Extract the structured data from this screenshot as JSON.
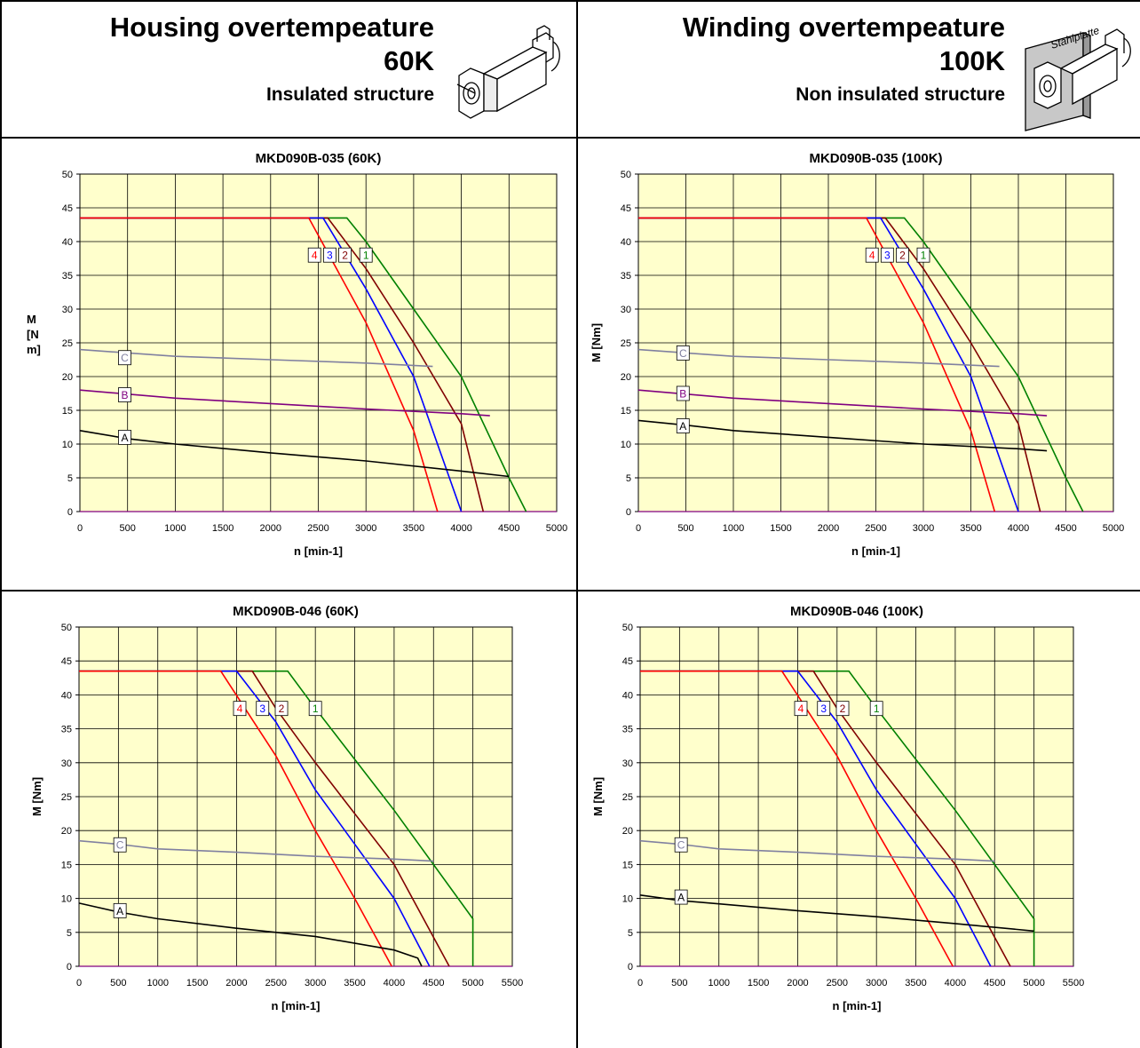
{
  "header": {
    "left": {
      "title": "Housing overtempeature",
      "value": "60K",
      "structure": "Insulated structure"
    },
    "right": {
      "title": "Winding overtempeature",
      "value": "100K",
      "structure": "Non insulated structure",
      "plate_label": "Stahlplatte"
    }
  },
  "colors": {
    "plot_bg": "#ffffcc",
    "c1": "#008000",
    "c2": "#800000",
    "c3": "#0000ff",
    "c4": "#ff0000",
    "A": "#000000",
    "B": "#800080",
    "C": "#8080a0"
  },
  "chart_data": [
    {
      "type": "line",
      "title": "MKD090B-035 (60K)",
      "xlabel": "n [min-1]",
      "ylabel": "M\n[N\nm]",
      "xlim": [
        0,
        5000
      ],
      "ylim": [
        0,
        50
      ],
      "xticks": [
        0,
        500,
        1000,
        1500,
        2000,
        2500,
        3000,
        3500,
        4000,
        4500,
        5000
      ],
      "yticks": [
        0,
        5,
        10,
        15,
        20,
        25,
        30,
        35,
        40,
        45,
        50
      ],
      "series": [
        {
          "name": "1",
          "points": [
            [
              0,
              43.5
            ],
            [
              2800,
              43.5
            ],
            [
              3000,
              40
            ],
            [
              3500,
              30
            ],
            [
              4000,
              20
            ],
            [
              4500,
              5
            ],
            [
              4680,
              0
            ]
          ]
        },
        {
          "name": "2",
          "points": [
            [
              0,
              43.5
            ],
            [
              2600,
              43.5
            ],
            [
              3000,
              36
            ],
            [
              3500,
              25
            ],
            [
              4000,
              13
            ],
            [
              4230,
              0
            ]
          ]
        },
        {
          "name": "3",
          "points": [
            [
              0,
              43.5
            ],
            [
              2550,
              43.5
            ],
            [
              3000,
              33
            ],
            [
              3500,
              20
            ],
            [
              4000,
              0
            ]
          ]
        },
        {
          "name": "4",
          "points": [
            [
              0,
              43.5
            ],
            [
              2400,
              43.5
            ],
            [
              3000,
              28
            ],
            [
              3500,
              12
            ],
            [
              3750,
              0
            ]
          ]
        },
        {
          "name": "A",
          "points": [
            [
              0,
              12
            ],
            [
              500,
              10.8
            ],
            [
              1000,
              10
            ],
            [
              2000,
              8.7
            ],
            [
              3000,
              7.5
            ],
            [
              4000,
              6
            ],
            [
              4500,
              5.2
            ]
          ]
        },
        {
          "name": "B",
          "points": [
            [
              0,
              18
            ],
            [
              1000,
              16.8
            ],
            [
              2000,
              16
            ],
            [
              3000,
              15.2
            ],
            [
              4000,
              14.5
            ],
            [
              4300,
              14.2
            ]
          ]
        },
        {
          "name": "C",
          "points": [
            [
              0,
              24
            ],
            [
              1000,
              23
            ],
            [
              2000,
              22.5
            ],
            [
              3000,
              22
            ],
            [
              3700,
              21.5
            ]
          ]
        }
      ],
      "labels": [
        {
          "text": "1",
          "x": 3000,
          "y": 38,
          "color": "#008000"
        },
        {
          "text": "2",
          "x": 2780,
          "y": 38,
          "color": "#800000"
        },
        {
          "text": "3",
          "x": 2620,
          "y": 38,
          "color": "#0000ff"
        },
        {
          "text": "4",
          "x": 2460,
          "y": 38,
          "color": "#ff0000"
        },
        {
          "text": "A",
          "x": 470,
          "y": 11,
          "color": "#000000"
        },
        {
          "text": "B",
          "x": 470,
          "y": 17.3,
          "color": "#800080"
        },
        {
          "text": "C",
          "x": 470,
          "y": 22.8,
          "color": "#8080a0"
        }
      ]
    },
    {
      "type": "line",
      "title": "MKD090B-035 (100K)",
      "xlabel": "n [min-1]",
      "ylabel": "M [Nm]",
      "xlim": [
        0,
        5000
      ],
      "ylim": [
        0,
        50
      ],
      "xticks": [
        0,
        500,
        1000,
        1500,
        2000,
        2500,
        3000,
        3500,
        4000,
        4500,
        5000
      ],
      "yticks": [
        0,
        5,
        10,
        15,
        20,
        25,
        30,
        35,
        40,
        45,
        50
      ],
      "series": [
        {
          "name": "1",
          "points": [
            [
              0,
              43.5
            ],
            [
              2800,
              43.5
            ],
            [
              3000,
              40
            ],
            [
              3500,
              30
            ],
            [
              4000,
              20
            ],
            [
              4500,
              5
            ],
            [
              4680,
              0
            ]
          ]
        },
        {
          "name": "2",
          "points": [
            [
              0,
              43.5
            ],
            [
              2600,
              43.5
            ],
            [
              3000,
              36
            ],
            [
              3500,
              25
            ],
            [
              4000,
              13
            ],
            [
              4230,
              0
            ]
          ]
        },
        {
          "name": "3",
          "points": [
            [
              0,
              43.5
            ],
            [
              2550,
              43.5
            ],
            [
              3000,
              33
            ],
            [
              3500,
              20
            ],
            [
              4000,
              0
            ]
          ]
        },
        {
          "name": "4",
          "points": [
            [
              0,
              43.5
            ],
            [
              2400,
              43.5
            ],
            [
              3000,
              28
            ],
            [
              3500,
              12
            ],
            [
              3750,
              0
            ]
          ]
        },
        {
          "name": "A",
          "points": [
            [
              0,
              13.5
            ],
            [
              500,
              12.8
            ],
            [
              1000,
              12
            ],
            [
              2000,
              11
            ],
            [
              3000,
              10
            ],
            [
              4000,
              9.3
            ],
            [
              4300,
              9
            ]
          ]
        },
        {
          "name": "B",
          "points": [
            [
              0,
              18
            ],
            [
              1000,
              16.8
            ],
            [
              2000,
              16
            ],
            [
              3000,
              15.2
            ],
            [
              4000,
              14.5
            ],
            [
              4300,
              14.2
            ]
          ]
        },
        {
          "name": "C",
          "points": [
            [
              0,
              24
            ],
            [
              1000,
              23
            ],
            [
              2000,
              22.5
            ],
            [
              3000,
              22
            ],
            [
              3800,
              21.5
            ]
          ]
        }
      ],
      "labels": [
        {
          "text": "1",
          "x": 3000,
          "y": 38,
          "color": "#008000"
        },
        {
          "text": "2",
          "x": 2780,
          "y": 38,
          "color": "#800000"
        },
        {
          "text": "3",
          "x": 2620,
          "y": 38,
          "color": "#0000ff"
        },
        {
          "text": "4",
          "x": 2460,
          "y": 38,
          "color": "#ff0000"
        },
        {
          "text": "A",
          "x": 470,
          "y": 12.7,
          "color": "#000000"
        },
        {
          "text": "B",
          "x": 470,
          "y": 17.5,
          "color": "#800080"
        },
        {
          "text": "C",
          "x": 470,
          "y": 23.5,
          "color": "#8080a0"
        }
      ]
    },
    {
      "type": "line",
      "title": "MKD090B-046 (60K)",
      "xlabel": "n [min-1]",
      "ylabel": "M [Nm]",
      "xlim": [
        0,
        5500
      ],
      "ylim": [
        0,
        50
      ],
      "xticks": [
        0,
        500,
        1000,
        1500,
        2000,
        2500,
        3000,
        3500,
        4000,
        4500,
        5000,
        5500
      ],
      "yticks": [
        0,
        5,
        10,
        15,
        20,
        25,
        30,
        35,
        40,
        45,
        50
      ],
      "series": [
        {
          "name": "1",
          "points": [
            [
              0,
              43.5
            ],
            [
              2650,
              43.5
            ],
            [
              3000,
              38
            ],
            [
              4000,
              23
            ],
            [
              5000,
              7
            ],
            [
              5000,
              0
            ]
          ]
        },
        {
          "name": "2",
          "points": [
            [
              0,
              43.5
            ],
            [
              2200,
              43.5
            ],
            [
              2500,
              38
            ],
            [
              3000,
              30
            ],
            [
              4000,
              15
            ],
            [
              4700,
              0
            ]
          ]
        },
        {
          "name": "3",
          "points": [
            [
              0,
              43.5
            ],
            [
              2000,
              43.5
            ],
            [
              2500,
              36
            ],
            [
              3000,
              26
            ],
            [
              4000,
              10
            ],
            [
              4450,
              0
            ]
          ]
        },
        {
          "name": "4",
          "points": [
            [
              0,
              43.5
            ],
            [
              1800,
              43.5
            ],
            [
              2500,
              31
            ],
            [
              3000,
              20
            ],
            [
              3500,
              10
            ],
            [
              3970,
              0
            ]
          ]
        },
        {
          "name": "A",
          "points": [
            [
              0,
              9.3
            ],
            [
              500,
              8
            ],
            [
              1000,
              7
            ],
            [
              2000,
              5.6
            ],
            [
              3000,
              4.4
            ],
            [
              4000,
              2.4
            ],
            [
              4300,
              1.2
            ],
            [
              4350,
              0
            ]
          ]
        },
        {
          "name": "C",
          "points": [
            [
              0,
              18.5
            ],
            [
              500,
              18
            ],
            [
              1000,
              17.3
            ],
            [
              2000,
              16.8
            ],
            [
              3000,
              16.2
            ],
            [
              4000,
              15.8
            ],
            [
              4500,
              15.5
            ]
          ]
        }
      ],
      "labels": [
        {
          "text": "1",
          "x": 3000,
          "y": 38,
          "color": "#008000"
        },
        {
          "text": "2",
          "x": 2570,
          "y": 38,
          "color": "#800000"
        },
        {
          "text": "3",
          "x": 2330,
          "y": 38,
          "color": "#0000ff"
        },
        {
          "text": "4",
          "x": 2040,
          "y": 38,
          "color": "#ff0000"
        },
        {
          "text": "A",
          "x": 520,
          "y": 8.2,
          "color": "#000000"
        },
        {
          "text": "C",
          "x": 520,
          "y": 17.9,
          "color": "#8080a0"
        }
      ]
    },
    {
      "type": "line",
      "title": "MKD090B-046 (100K)",
      "xlabel": "n [min-1]",
      "ylabel": "M [Nm]",
      "xlim": [
        0,
        5500
      ],
      "ylim": [
        0,
        50
      ],
      "xticks": [
        0,
        500,
        1000,
        1500,
        2000,
        2500,
        3000,
        3500,
        4000,
        4500,
        5000,
        5500
      ],
      "yticks": [
        0,
        5,
        10,
        15,
        20,
        25,
        30,
        35,
        40,
        45,
        50
      ],
      "series": [
        {
          "name": "1",
          "points": [
            [
              0,
              43.5
            ],
            [
              2650,
              43.5
            ],
            [
              3000,
              38
            ],
            [
              4000,
              23
            ],
            [
              5000,
              7
            ],
            [
              5000,
              0
            ]
          ]
        },
        {
          "name": "2",
          "points": [
            [
              0,
              43.5
            ],
            [
              2200,
              43.5
            ],
            [
              2500,
              38
            ],
            [
              3000,
              30
            ],
            [
              4000,
              15
            ],
            [
              4700,
              0
            ]
          ]
        },
        {
          "name": "3",
          "points": [
            [
              0,
              43.5
            ],
            [
              2000,
              43.5
            ],
            [
              2500,
              36
            ],
            [
              3000,
              26
            ],
            [
              4000,
              10
            ],
            [
              4450,
              0
            ]
          ]
        },
        {
          "name": "4",
          "points": [
            [
              0,
              43.5
            ],
            [
              1800,
              43.5
            ],
            [
              2500,
              31
            ],
            [
              3000,
              20
            ],
            [
              3500,
              10
            ],
            [
              3970,
              0
            ]
          ]
        },
        {
          "name": "A",
          "points": [
            [
              0,
              10.5
            ],
            [
              500,
              9.7
            ],
            [
              1000,
              9.2
            ],
            [
              2000,
              8.2
            ],
            [
              3000,
              7.3
            ],
            [
              4000,
              6.3
            ],
            [
              5000,
              5.2
            ]
          ]
        },
        {
          "name": "C",
          "points": [
            [
              0,
              18.5
            ],
            [
              500,
              18
            ],
            [
              1000,
              17.3
            ],
            [
              2000,
              16.8
            ],
            [
              3000,
              16.2
            ],
            [
              4000,
              15.8
            ],
            [
              4500,
              15.5
            ]
          ]
        }
      ],
      "labels": [
        {
          "text": "1",
          "x": 3000,
          "y": 38,
          "color": "#008000"
        },
        {
          "text": "2",
          "x": 2570,
          "y": 38,
          "color": "#800000"
        },
        {
          "text": "3",
          "x": 2330,
          "y": 38,
          "color": "#0000ff"
        },
        {
          "text": "4",
          "x": 2040,
          "y": 38,
          "color": "#ff0000"
        },
        {
          "text": "A",
          "x": 520,
          "y": 10.2,
          "color": "#000000"
        },
        {
          "text": "C",
          "x": 520,
          "y": 17.9,
          "color": "#8080a0"
        }
      ]
    }
  ]
}
